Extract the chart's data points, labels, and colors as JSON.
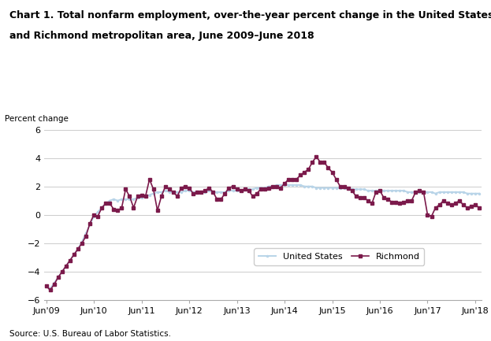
{
  "title_line1": "Chart 1. Total nonfarm employment, over-the-year percent change in the United States",
  "title_line2": "and Richmond metropolitan area, June 2009–June 2018",
  "ylabel": "Percent change",
  "source": "Source: U.S. Bureau of Labor Statistics.",
  "ylim": [
    -6,
    6
  ],
  "yticks": [
    -6,
    -4,
    -2,
    0,
    2,
    4,
    6
  ],
  "us_color": "#b8d4e8",
  "richmond_color": "#7b1a4b",
  "us_label": "United States",
  "richmond_label": "Richmond",
  "x_labels": [
    "Jun'09",
    "Jun'10",
    "Jun'11",
    "Jun'12",
    "Jun'13",
    "Jun'14",
    "Jun'15",
    "Jun'16",
    "Jun'17",
    "Jun'18"
  ],
  "us_monthly": [
    -5.0,
    -5.2,
    -4.8,
    -4.4,
    -4.0,
    -3.6,
    -3.2,
    -2.8,
    -2.4,
    -1.9,
    -1.3,
    -0.7,
    -0.1,
    0.2,
    0.5,
    0.8,
    1.0,
    1.1,
    1.0,
    1.1,
    1.1,
    1.1,
    1.1,
    1.2,
    1.2,
    1.3,
    1.4,
    1.5,
    1.6,
    1.6,
    1.7,
    1.6,
    1.6,
    1.6,
    1.6,
    1.7,
    1.7,
    1.6,
    1.6,
    1.6,
    1.6,
    1.7,
    1.6,
    1.6,
    1.6,
    1.6,
    1.7,
    1.7,
    1.7,
    1.7,
    1.8,
    1.8,
    1.8,
    1.9,
    1.9,
    1.9,
    2.0,
    2.0,
    2.1,
    2.1,
    2.1,
    2.1,
    2.1,
    2.1,
    2.1,
    2.0,
    2.0,
    2.0,
    1.9,
    1.9,
    1.9,
    1.9,
    1.9,
    1.9,
    1.9,
    1.9,
    1.8,
    1.8,
    1.8,
    1.8,
    1.8,
    1.7,
    1.7,
    1.7,
    1.7,
    1.7,
    1.7,
    1.7,
    1.7,
    1.7,
    1.7,
    1.6,
    1.6,
    1.6,
    1.6,
    1.6,
    1.6,
    1.6,
    1.5,
    1.6,
    1.6,
    1.6,
    1.6,
    1.6,
    1.6,
    1.6,
    1.5,
    1.5,
    1.5,
    1.5
  ],
  "richmond_monthly": [
    -5.0,
    -5.3,
    -4.9,
    -4.4,
    -4.0,
    -3.6,
    -3.2,
    -2.8,
    -2.4,
    -2.0,
    -1.5,
    -0.6,
    0.0,
    -0.1,
    0.5,
    0.8,
    0.8,
    0.4,
    0.3,
    0.5,
    1.8,
    1.3,
    0.5,
    1.3,
    1.4,
    1.3,
    2.5,
    1.8,
    0.3,
    1.3,
    2.0,
    1.8,
    1.6,
    1.3,
    1.9,
    2.0,
    1.9,
    1.5,
    1.6,
    1.6,
    1.7,
    1.9,
    1.6,
    1.1,
    1.1,
    1.5,
    1.9,
    2.0,
    1.8,
    1.7,
    1.8,
    1.7,
    1.3,
    1.5,
    1.8,
    1.8,
    1.9,
    2.0,
    2.0,
    1.9,
    2.2,
    2.5,
    2.5,
    2.5,
    2.8,
    3.0,
    3.2,
    3.7,
    4.1,
    3.7,
    3.7,
    3.3,
    3.0,
    2.5,
    2.0,
    2.0,
    1.9,
    1.7,
    1.3,
    1.2,
    1.2,
    1.0,
    0.8,
    1.6,
    1.7,
    1.2,
    1.1,
    0.9,
    0.9,
    0.8,
    0.9,
    1.0,
    1.0,
    1.6,
    1.7,
    1.6,
    0.0,
    -0.1,
    0.5,
    0.7,
    1.0,
    0.8,
    0.7,
    0.8,
    1.0,
    0.7,
    0.5,
    0.6,
    0.7,
    0.5
  ]
}
